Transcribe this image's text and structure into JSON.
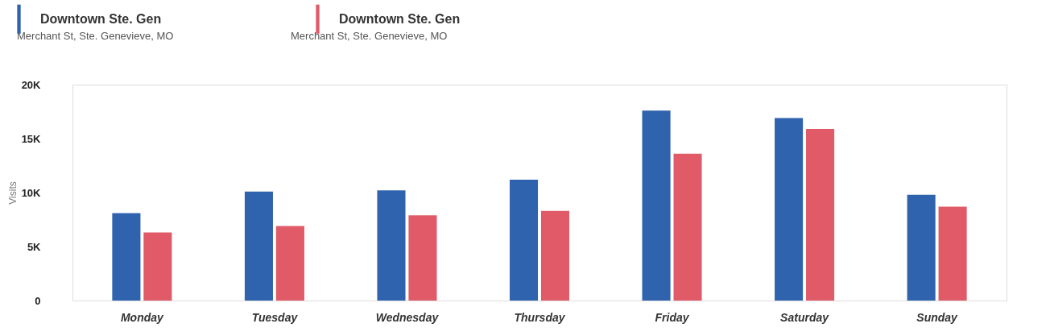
{
  "chart_data": {
    "type": "bar",
    "ylabel": "Visits",
    "categories": [
      "Monday",
      "Tuesday",
      "Wednesday",
      "Thursday",
      "Friday",
      "Saturday",
      "Sunday"
    ],
    "series": [
      {
        "name": "Downtown Ste. Gen",
        "color": "#2f63ad",
        "values": [
          8100,
          10100,
          10200,
          11200,
          17600,
          16900,
          9800
        ]
      },
      {
        "name": "Downtown Ste. Gen",
        "color": "#e05a68",
        "values": [
          6300,
          6900,
          7900,
          8300,
          13600,
          15900,
          8700
        ]
      }
    ],
    "annotations": [
      "Merchant St, Ste. Genevieve, MO",
      "Merchant St, Ste. Genevieve, MO"
    ],
    "ylim": [
      0,
      20000
    ],
    "yticks": [
      {
        "value": 0,
        "label": "0"
      },
      {
        "value": 5000,
        "label": "5K"
      },
      {
        "value": 10000,
        "label": "10K"
      },
      {
        "value": 15000,
        "label": "15K"
      },
      {
        "value": 20000,
        "label": "20K"
      }
    ],
    "grid": false,
    "legend": "top left"
  }
}
